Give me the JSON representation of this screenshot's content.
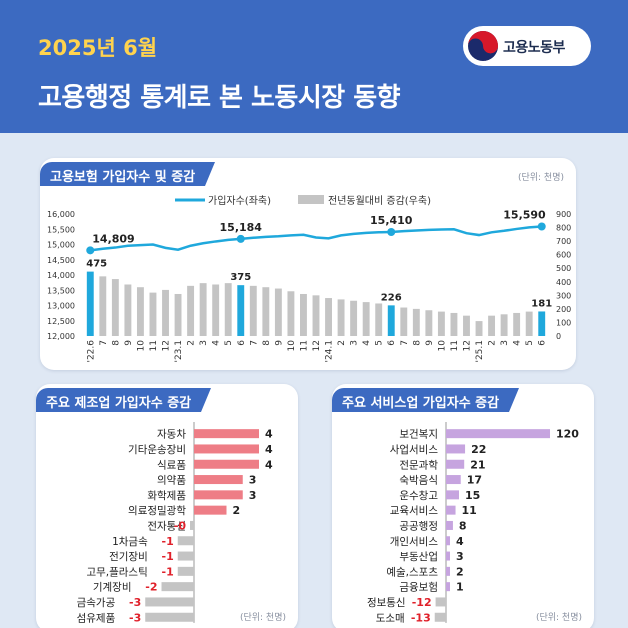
{
  "header": {
    "month": "2025년 6월",
    "title": "고용행정 통계로 본 노동시장 동향",
    "org": "고용노동부"
  },
  "main_chart": {
    "title": "고용보험 가입자수 및 증감",
    "unit": "(단위: 천명)",
    "legend": {
      "line": "가입자수(좌축)",
      "bar": "전년동월대비 증감(우축)"
    },
    "left_ticks": [
      "16,000",
      "15,500",
      "15,000",
      "14,500",
      "14,000",
      "13,500",
      "13,000",
      "12,500",
      "12,000"
    ],
    "right_ticks": [
      "900",
      "800",
      "700",
      "600",
      "500",
      "400",
      "300",
      "200",
      "100",
      "0"
    ]
  },
  "chart_data": [
    {
      "type": "line+bar",
      "title": "고용보험 가입자수 및 증감",
      "x": [
        "'22.6",
        "7",
        "8",
        "9",
        "10",
        "11",
        "12",
        "'23.1",
        "2",
        "3",
        "4",
        "5",
        "6",
        "7",
        "8",
        "9",
        "10",
        "11",
        "12",
        "'24.1",
        "2",
        "3",
        "4",
        "5",
        "6",
        "7",
        "8",
        "9",
        "10",
        "11",
        "12",
        "'25.1",
        "2",
        "3",
        "4",
        "5",
        "6"
      ],
      "left_ylim": [
        12000,
        16000
      ],
      "right_ylim": [
        0,
        900
      ],
      "series": [
        {
          "name": "가입자수(좌축)",
          "axis": "left",
          "values": [
            14809,
            14860,
            14900,
            14960,
            14980,
            15000,
            14890,
            14830,
            14960,
            15040,
            15100,
            15150,
            15184,
            15220,
            15250,
            15270,
            15300,
            15320,
            15230,
            15200,
            15300,
            15350,
            15380,
            15400,
            15410,
            15440,
            15460,
            15480,
            15490,
            15500,
            15370,
            15310,
            15400,
            15450,
            15510,
            15560,
            15590
          ]
        },
        {
          "name": "전년동월대비 증감(우축)",
          "axis": "right",
          "values": [
            475,
            440,
            420,
            380,
            360,
            320,
            340,
            310,
            370,
            390,
            380,
            390,
            375,
            370,
            360,
            350,
            330,
            310,
            300,
            280,
            270,
            260,
            250,
            240,
            226,
            210,
            200,
            190,
            180,
            170,
            150,
            110,
            150,
            160,
            170,
            180,
            181
          ]
        }
      ],
      "highlight_labels": [
        {
          "index": 0,
          "line": "14,809",
          "bar": "475"
        },
        {
          "index": 12,
          "line": "15,184",
          "bar": "375"
        },
        {
          "index": 24,
          "line": "15,410",
          "bar": "226"
        },
        {
          "index": 36,
          "line": "15,590",
          "bar": "181"
        }
      ]
    },
    {
      "type": "bar",
      "title": "주요 제조업 가입자수 증감",
      "unit": "(단위: 천명)",
      "categories": [
        "자동차",
        "기타운송장비",
        "식료품",
        "의약품",
        "화학제품",
        "의료정밀광학",
        "전자통신",
        "1차금속",
        "전기장비",
        "고무,플라스틱",
        "기계장비",
        "금속가공",
        "섬유제품"
      ],
      "values": [
        4,
        4,
        4,
        3,
        3,
        2,
        0,
        -1,
        -1,
        -1,
        -2,
        -3,
        -3
      ],
      "labels": [
        "4",
        "4",
        "4",
        "3",
        "3",
        "2",
        "-0",
        "-1",
        "-1",
        "-1",
        "-2",
        "-3",
        "-3"
      ]
    },
    {
      "type": "bar",
      "title": "주요 서비스업 가입자수 증감",
      "unit": "(단위: 천명)",
      "categories": [
        "보건복지",
        "사업서비스",
        "전문과학",
        "숙박음식",
        "운수창고",
        "교육서비스",
        "공공행정",
        "개인서비스",
        "부동산업",
        "예술,스포츠",
        "금융보험",
        "정보통신",
        "도소매"
      ],
      "values": [
        120,
        22,
        21,
        17,
        15,
        11,
        8,
        4,
        3,
        2,
        1,
        -12,
        -13
      ],
      "labels": [
        "120",
        "22",
        "21",
        "17",
        "15",
        "11",
        "8",
        "4",
        "3",
        "2",
        "1",
        "-12",
        "-13"
      ]
    }
  ],
  "colors": {
    "header": "#3c6ac1",
    "accent_yellow": "#ffd34e",
    "line": "#1fa8dc",
    "bar_gray": "#c4c4c4",
    "bar_highlight": "#1fa8dc",
    "manu_pos": "#ee7d86",
    "serv_pos": "#c6a4df",
    "neg": "#c4c4c4",
    "neg_text": "#e0202a"
  }
}
